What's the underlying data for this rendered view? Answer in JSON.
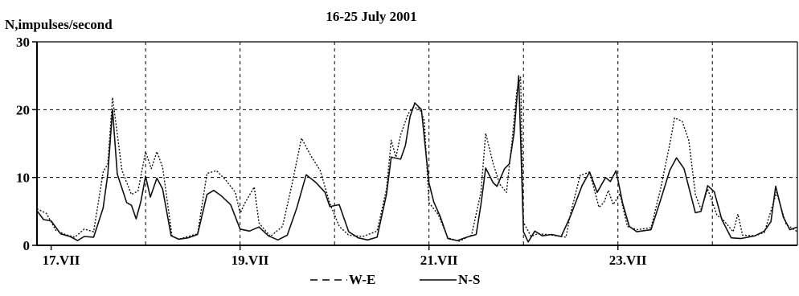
{
  "chart_data": {
    "type": "line",
    "title": "16-25 July 2001",
    "ylabel": "N,impulses/second",
    "xlabel": "",
    "ylim": [
      0,
      30
    ],
    "yticks": [
      0,
      10,
      20,
      30
    ],
    "xlim": [
      16.85,
      24.9
    ],
    "xticks": [
      {
        "value": 17,
        "label": "17.VII"
      },
      {
        "value": 19,
        "label": "19.VII"
      },
      {
        "value": 21,
        "label": "21.VII"
      },
      {
        "value": 23,
        "label": "23.VII"
      }
    ],
    "grid": true,
    "legend_position": "bottom-center",
    "series": [
      {
        "name": "W-E",
        "style": "dashed",
        "points": [
          [
            16.85,
            5.4
          ],
          [
            16.95,
            4.7
          ],
          [
            17.05,
            2.2
          ],
          [
            17.15,
            1.6
          ],
          [
            17.25,
            1.2
          ],
          [
            17.35,
            2.4
          ],
          [
            17.45,
            2.0
          ],
          [
            17.55,
            10.8
          ],
          [
            17.6,
            12.0
          ],
          [
            17.65,
            21.8
          ],
          [
            17.75,
            11.0
          ],
          [
            17.85,
            7.5
          ],
          [
            17.92,
            8.0
          ],
          [
            18.0,
            13.8
          ],
          [
            18.06,
            11.3
          ],
          [
            18.12,
            13.8
          ],
          [
            18.18,
            11.5
          ],
          [
            18.28,
            1.4
          ],
          [
            18.35,
            0.9
          ],
          [
            18.45,
            1.3
          ],
          [
            18.55,
            1.7
          ],
          [
            18.65,
            10.6
          ],
          [
            18.75,
            11.0
          ],
          [
            18.85,
            9.6
          ],
          [
            18.95,
            7.8
          ],
          [
            19.0,
            4.7
          ],
          [
            19.05,
            6.2
          ],
          [
            19.15,
            8.6
          ],
          [
            19.2,
            3.3
          ],
          [
            19.32,
            1.3
          ],
          [
            19.45,
            2.8
          ],
          [
            19.55,
            9.0
          ],
          [
            19.65,
            15.8
          ],
          [
            19.75,
            13.2
          ],
          [
            19.85,
            11.0
          ],
          [
            19.95,
            6.2
          ],
          [
            20.05,
            2.8
          ],
          [
            20.15,
            1.5
          ],
          [
            20.3,
            1.3
          ],
          [
            20.45,
            2.1
          ],
          [
            20.55,
            8.3
          ],
          [
            20.6,
            15.5
          ],
          [
            20.65,
            13.0
          ],
          [
            20.7,
            16.3
          ],
          [
            20.78,
            19.4
          ],
          [
            20.83,
            20.3
          ],
          [
            20.9,
            20.2
          ],
          [
            20.95,
            18.4
          ],
          [
            21.0,
            6.3
          ],
          [
            21.1,
            4.5
          ],
          [
            21.2,
            1.1
          ],
          [
            21.32,
            0.6
          ],
          [
            21.45,
            1.5
          ],
          [
            21.55,
            7.8
          ],
          [
            21.6,
            16.5
          ],
          [
            21.68,
            12.0
          ],
          [
            21.75,
            9.0
          ],
          [
            21.82,
            7.8
          ],
          [
            21.88,
            15.5
          ],
          [
            21.93,
            22.8
          ],
          [
            21.97,
            24.8
          ],
          [
            22.0,
            3.4
          ],
          [
            22.08,
            1.3
          ],
          [
            22.15,
            1.7
          ],
          [
            22.25,
            1.6
          ],
          [
            22.35,
            1.4
          ],
          [
            22.45,
            1.2
          ],
          [
            22.5,
            4.8
          ],
          [
            22.6,
            10.3
          ],
          [
            22.7,
            10.8
          ],
          [
            22.8,
            5.6
          ],
          [
            22.85,
            6.3
          ],
          [
            22.9,
            8.1
          ],
          [
            22.95,
            6.0
          ],
          [
            23.02,
            7.6
          ],
          [
            23.1,
            2.8
          ],
          [
            23.2,
            2.3
          ],
          [
            23.35,
            2.6
          ],
          [
            23.45,
            8.2
          ],
          [
            23.55,
            15.0
          ],
          [
            23.6,
            18.8
          ],
          [
            23.68,
            18.3
          ],
          [
            23.75,
            15.5
          ],
          [
            23.82,
            7.5
          ],
          [
            23.88,
            5.3
          ],
          [
            23.95,
            8.3
          ],
          [
            24.05,
            4.4
          ],
          [
            24.1,
            4.0
          ],
          [
            24.22,
            2.0
          ],
          [
            24.27,
            4.6
          ],
          [
            24.32,
            1.5
          ],
          [
            24.45,
            1.4
          ],
          [
            24.55,
            1.9
          ],
          [
            24.68,
            7.8
          ],
          [
            24.78,
            3.1
          ],
          [
            24.9,
            2.0
          ]
        ]
      },
      {
        "name": "N-S",
        "style": "solid",
        "points": [
          [
            16.85,
            5.1
          ],
          [
            16.92,
            3.8
          ],
          [
            17.0,
            3.6
          ],
          [
            17.1,
            1.7
          ],
          [
            17.2,
            1.3
          ],
          [
            17.28,
            0.7
          ],
          [
            17.35,
            1.3
          ],
          [
            17.45,
            1.2
          ],
          [
            17.55,
            5.5
          ],
          [
            17.6,
            10.5
          ],
          [
            17.65,
            20.0
          ],
          [
            17.7,
            10.5
          ],
          [
            17.8,
            6.3
          ],
          [
            17.85,
            5.9
          ],
          [
            17.9,
            3.9
          ],
          [
            17.95,
            6.5
          ],
          [
            18.0,
            10.2
          ],
          [
            18.05,
            7.1
          ],
          [
            18.12,
            9.9
          ],
          [
            18.18,
            8.3
          ],
          [
            18.27,
            1.4
          ],
          [
            18.35,
            0.9
          ],
          [
            18.45,
            1.1
          ],
          [
            18.55,
            1.6
          ],
          [
            18.65,
            7.5
          ],
          [
            18.72,
            8.1
          ],
          [
            18.8,
            7.3
          ],
          [
            18.9,
            6.0
          ],
          [
            18.95,
            4.2
          ],
          [
            19.0,
            2.4
          ],
          [
            19.1,
            2.1
          ],
          [
            19.2,
            2.7
          ],
          [
            19.3,
            1.4
          ],
          [
            19.4,
            0.8
          ],
          [
            19.5,
            1.5
          ],
          [
            19.6,
            5.5
          ],
          [
            19.7,
            10.4
          ],
          [
            19.8,
            9.3
          ],
          [
            19.9,
            7.8
          ],
          [
            19.95,
            5.7
          ],
          [
            20.05,
            6.0
          ],
          [
            20.15,
            2.0
          ],
          [
            20.25,
            1.1
          ],
          [
            20.35,
            0.8
          ],
          [
            20.45,
            1.2
          ],
          [
            20.55,
            7.5
          ],
          [
            20.6,
            13.0
          ],
          [
            20.7,
            12.7
          ],
          [
            20.75,
            14.7
          ],
          [
            20.8,
            19.0
          ],
          [
            20.85,
            21.0
          ],
          [
            20.92,
            20.0
          ],
          [
            21.0,
            9.2
          ],
          [
            21.05,
            6.4
          ],
          [
            21.12,
            4.2
          ],
          [
            21.2,
            1.0
          ],
          [
            21.3,
            0.7
          ],
          [
            21.4,
            1.2
          ],
          [
            21.5,
            1.6
          ],
          [
            21.55,
            6.0
          ],
          [
            21.6,
            11.4
          ],
          [
            21.68,
            9.2
          ],
          [
            21.72,
            8.7
          ],
          [
            21.8,
            11.3
          ],
          [
            21.85,
            12.0
          ],
          [
            21.9,
            16.5
          ],
          [
            21.95,
            25.0
          ],
          [
            22.0,
            2.0
          ],
          [
            22.05,
            0.5
          ],
          [
            22.12,
            2.1
          ],
          [
            22.2,
            1.4
          ],
          [
            22.3,
            1.6
          ],
          [
            22.4,
            1.3
          ],
          [
            22.5,
            4.4
          ],
          [
            22.62,
            8.8
          ],
          [
            22.7,
            10.8
          ],
          [
            22.78,
            7.8
          ],
          [
            22.87,
            10.0
          ],
          [
            22.92,
            9.4
          ],
          [
            22.98,
            11.0
          ],
          [
            23.05,
            6.2
          ],
          [
            23.12,
            2.8
          ],
          [
            23.2,
            2.0
          ],
          [
            23.35,
            2.3
          ],
          [
            23.45,
            6.6
          ],
          [
            23.55,
            11.1
          ],
          [
            23.62,
            12.9
          ],
          [
            23.7,
            11.3
          ],
          [
            23.82,
            4.8
          ],
          [
            23.88,
            5.0
          ],
          [
            23.95,
            8.8
          ],
          [
            24.02,
            7.9
          ],
          [
            24.1,
            3.8
          ],
          [
            24.2,
            1.1
          ],
          [
            24.3,
            1.0
          ],
          [
            24.45,
            1.4
          ],
          [
            24.55,
            2.1
          ],
          [
            24.62,
            3.5
          ],
          [
            24.67,
            8.7
          ],
          [
            24.75,
            4.2
          ],
          [
            24.82,
            2.3
          ],
          [
            24.9,
            2.7
          ]
        ]
      }
    ]
  }
}
